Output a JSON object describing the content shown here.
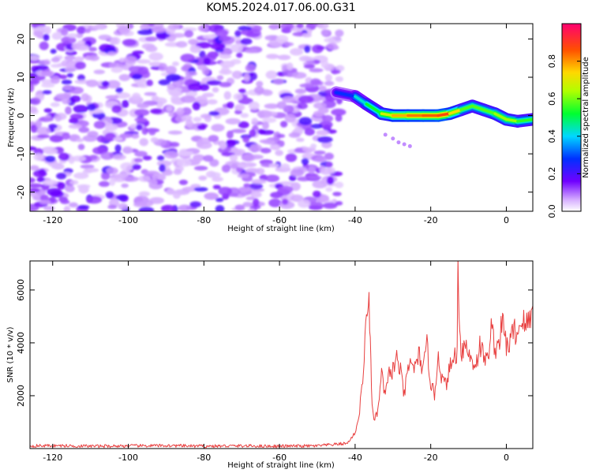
{
  "figure_title": "KOM5.2024.017.06.00.G31",
  "chart_data": [
    {
      "type": "heatmap",
      "xlabel": "Height of straight line (km)",
      "ylabel": "Frequency (Hz)",
      "xlim": [
        -126,
        7
      ],
      "ylim": [
        -25,
        24
      ],
      "xticks": [
        -120,
        -100,
        -80,
        -60,
        -40,
        -20,
        0
      ],
      "yticks": [
        -20,
        -10,
        0,
        10,
        20
      ],
      "colorbar": {
        "label": "Normalized spectral amplitude",
        "range": [
          0.0,
          1.0
        ],
        "ticks": [
          0.0,
          0.2,
          0.4,
          0.6,
          0.8
        ],
        "colormap": "rainbow"
      },
      "features": {
        "noise_region_x": [
          -126,
          -44
        ],
        "noise_level": 0.15,
        "signal_track": {
          "x": [
            -45,
            -40,
            -37,
            -33,
            -30,
            -26,
            -22,
            -18,
            -15,
            -12,
            -9,
            -6,
            -3,
            0,
            3,
            7
          ],
          "y": [
            6,
            5,
            3,
            0.5,
            0,
            0,
            0,
            0,
            0.5,
            1.5,
            2.5,
            1.5,
            0.5,
            -1,
            -1.5,
            -1
          ],
          "amplitude": [
            0.15,
            0.4,
            0.45,
            0.6,
            0.75,
            0.8,
            0.85,
            0.85,
            0.9,
            0.55,
            0.6,
            0.55,
            0.6,
            0.65,
            0.6,
            0.5
          ]
        }
      }
    },
    {
      "type": "line",
      "xlabel": "Height of straight line (km)",
      "ylabel": "SNR (10 * v/v)",
      "xlim": [
        -126,
        7
      ],
      "ylim": [
        0,
        7100
      ],
      "xticks": [
        -120,
        -100,
        -80,
        -60,
        -40,
        -20,
        0
      ],
      "yticks": [
        2000,
        4000,
        6000
      ],
      "series": [
        {
          "color": "#e84040",
          "x": [
            -126,
            -120,
            -110,
            -100,
            -90,
            -80,
            -70,
            -60,
            -50,
            -42,
            -40,
            -39,
            -38,
            -37,
            -36.5,
            -36,
            -35.5,
            -35,
            -34,
            -33,
            -32,
            -31,
            -30,
            -29,
            -28,
            -27,
            -26,
            -25,
            -24,
            -23,
            -22,
            -21,
            -20,
            -19,
            -18,
            -17,
            -16,
            -15,
            -14,
            -13,
            -12.8,
            -12.5,
            -12,
            -11,
            -10,
            -9,
            -8,
            -7,
            -6,
            -5,
            -4,
            -3,
            -2,
            -1,
            0,
            1,
            2,
            3,
            4,
            5,
            6,
            7
          ],
          "values": [
            100,
            110,
            90,
            100,
            110,
            90,
            100,
            90,
            100,
            200,
            600,
            1200,
            2600,
            4800,
            6000,
            4000,
            1800,
            1000,
            1400,
            2800,
            2000,
            2800,
            3000,
            3400,
            2900,
            2000,
            3000,
            3300,
            3000,
            3600,
            2900,
            3900,
            2500,
            2000,
            3600,
            2600,
            2400,
            3000,
            3400,
            3700,
            6900,
            5500,
            3600,
            4000,
            3600,
            3300,
            3200,
            3900,
            3500,
            3300,
            4600,
            3800,
            4000,
            4800,
            3900,
            4000,
            4500,
            4300,
            5000,
            4600,
            4800,
            5400
          ]
        }
      ]
    }
  ]
}
